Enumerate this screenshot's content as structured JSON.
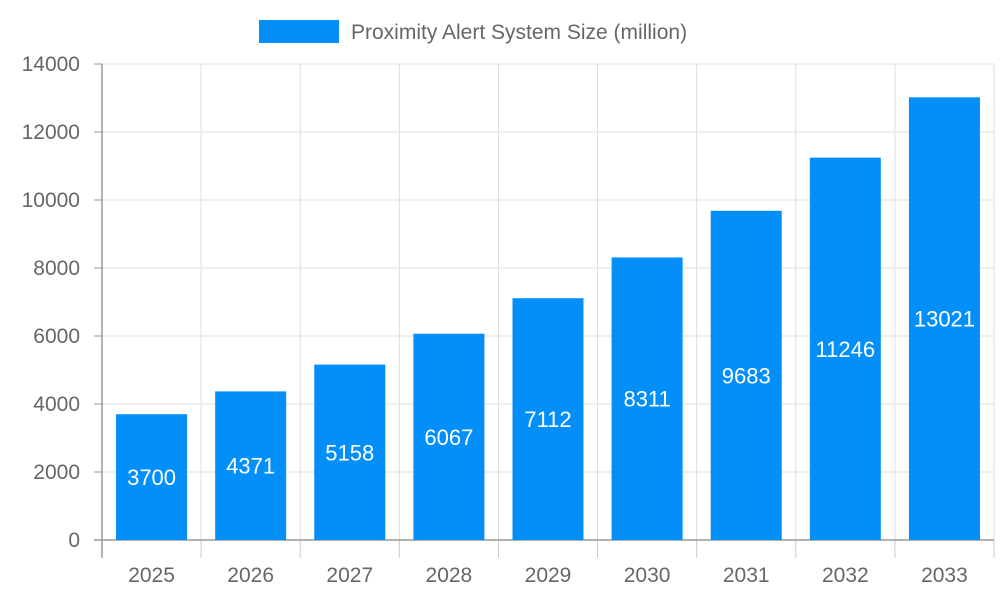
{
  "chart_data": {
    "type": "bar",
    "title": "",
    "xlabel": "",
    "ylabel": "",
    "categories": [
      "2025",
      "2026",
      "2027",
      "2028",
      "2029",
      "2030",
      "2031",
      "2032",
      "2033"
    ],
    "series": [
      {
        "name": "Proximity Alert System Size (million)",
        "values": [
          3700,
          4371,
          5158,
          6067,
          7112,
          8311,
          9683,
          11246,
          13021
        ],
        "color": "#038ffa"
      }
    ],
    "ylim": [
      0,
      14000
    ],
    "yticks": [
      0,
      2000,
      4000,
      6000,
      8000,
      10000,
      12000,
      14000
    ],
    "grid": true,
    "legend_position": "top-center",
    "data_labels": true,
    "data_label_color": "#ffffff"
  }
}
